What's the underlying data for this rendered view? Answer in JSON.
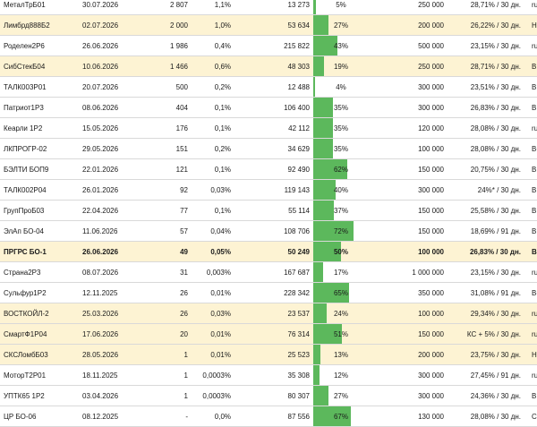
{
  "rows": [
    {
      "name": "МеталТрБ01",
      "date": "30.07.2026",
      "qty": "2 807",
      "share": "1,1%",
      "sum": "13 273",
      "pct": "5%",
      "fill": 5,
      "nominal": "250 000",
      "yield": "28,71% / 30 дн.",
      "rating": "ruB",
      "hl": false,
      "bold": false
    },
    {
      "name": "Лимбрд888Б2",
      "date": "02.07.2026",
      "qty": "2 000",
      "share": "1,0%",
      "sum": "53 634",
      "pct": "27%",
      "fill": 27,
      "nominal": "200 000",
      "yield": "26,22% / 30 дн.",
      "rating": "Нет",
      "hl": true,
      "bold": false
    },
    {
      "name": "Роделен2Р6",
      "date": "26.06.2026",
      "qty": "1 986",
      "share": "0,4%",
      "sum": "215 822",
      "pct": "43%",
      "fill": 43,
      "nominal": "500 000",
      "yield": "23,15% / 30 дн.",
      "rating": "ruBBB / Развив.",
      "hl": false,
      "bold": false
    },
    {
      "name": "СибСтекБ04",
      "date": "10.06.2026",
      "qty": "1 466",
      "share": "0,6%",
      "sum": "48 303",
      "pct": "19%",
      "fill": 19,
      "nominal": "250 000",
      "yield": "28,71% / 30 дн.",
      "rating": "BB-(RU) / Развив.",
      "hl": true,
      "bold": false
    },
    {
      "name": "ТАЛК003Р01",
      "date": "20.07.2026",
      "qty": "500",
      "share": "0,2%",
      "sum": "12 488",
      "pct": "4%",
      "fill": 4,
      "nominal": "300 000",
      "yield": "23,51% / 30 дн.",
      "rating": "BBB(RU)",
      "hl": false,
      "bold": false
    },
    {
      "name": "Патриот1Р3",
      "date": "08.06.2026",
      "qty": "404",
      "share": "0,1%",
      "sum": "106 400",
      "pct": "35%",
      "fill": 35,
      "nominal": "300 000",
      "yield": "26,83% / 30 дн.",
      "rating": "BB+.ru / Неопред.",
      "hl": false,
      "bold": false
    },
    {
      "name": "Кеарли 1Р2",
      "date": "15.05.2026",
      "qty": "176",
      "share": "0,1%",
      "sum": "42 112",
      "pct": "35%",
      "fill": 35,
      "nominal": "120 000",
      "yield": "28,08% / 30 дн.",
      "rating": "ruB+",
      "hl": false,
      "bold": false
    },
    {
      "name": "ЛКПРОГР-02",
      "date": "29.05.2026",
      "qty": "151",
      "share": "0,2%",
      "sum": "34 629",
      "pct": "35%",
      "fill": 35,
      "nominal": "100 000",
      "yield": "28,08% / 30 дн.",
      "rating": "B+.ru",
      "hl": false,
      "bold": false
    },
    {
      "name": "БЭЛТИ БОП9",
      "date": "22.01.2026",
      "qty": "121",
      "share": "0,1%",
      "sum": "92 490",
      "pct": "62%",
      "fill": 62,
      "nominal": "150 000",
      "yield": "20,75% / 30 дн.",
      "rating": "BB-(RU)",
      "hl": false,
      "bold": false
    },
    {
      "name": "ТАЛК002Р04",
      "date": "26.01.2026",
      "qty": "92",
      "share": "0,03%",
      "sum": "119 143",
      "pct": "40%",
      "fill": 40,
      "nominal": "300 000",
      "yield": "24%* / 30 дн.",
      "rating": "BBB(RU)",
      "hl": false,
      "bold": false
    },
    {
      "name": "ГрупПроБ03",
      "date": "22.04.2026",
      "qty": "77",
      "share": "0,1%",
      "sum": "55 114",
      "pct": "37%",
      "fill": 37,
      "nominal": "150 000",
      "yield": "25,58% / 30 дн.",
      "rating": "BB-.ru",
      "hl": false,
      "bold": false
    },
    {
      "name": "ЭлАп БО-04",
      "date": "11.06.2026",
      "qty": "57",
      "share": "0,04%",
      "sum": "108 706",
      "pct": "72%",
      "fill": 72,
      "nominal": "150 000",
      "yield": "18,69% / 91 дн.",
      "rating": "BB-.ru",
      "hl": false,
      "bold": false
    },
    {
      "name": "ПРГРС БО-1",
      "date": "26.06.2026",
      "qty": "49",
      "share": "0,05%",
      "sum": "50 249",
      "pct": "50%",
      "fill": 50,
      "nominal": "100 000",
      "yield": "26,83% / 30 дн.",
      "rating": "BB-.ru",
      "hl": true,
      "bold": true
    },
    {
      "name": "Страна2Р3",
      "date": "08.07.2026",
      "qty": "31",
      "share": "0,003%",
      "sum": "167 687",
      "pct": "17%",
      "fill": 17,
      "nominal": "1 000 000",
      "yield": "23,15% / 30 дн.",
      "rating": "ruBBB-",
      "hl": false,
      "bold": false
    },
    {
      "name": "Сульфур1Р2",
      "date": "12.11.2025",
      "qty": "26",
      "share": "0,01%",
      "sum": "228 342",
      "pct": "65%",
      "fill": 65,
      "nominal": "350 000",
      "yield": "31,08% / 91 дн.",
      "rating": "B(RU)",
      "hl": false,
      "bold": false
    },
    {
      "name": "ВОСТКОЙЛ-2",
      "date": "25.03.2026",
      "qty": "26",
      "share": "0,03%",
      "sum": "23 537",
      "pct": "24%",
      "fill": 24,
      "nominal": "100 000",
      "yield": "29,34% / 30 дн.",
      "rating": "ruB-",
      "hl": true,
      "bold": false
    },
    {
      "name": "СмартФ1Р04",
      "date": "17.06.2026",
      "qty": "20",
      "share": "0,01%",
      "sum": "76 314",
      "pct": "51%",
      "fill": 51,
      "nominal": "150 000",
      "yield": "КС + 5% / 30 дн.",
      "rating": "ruBBB-",
      "hl": true,
      "bold": false
    },
    {
      "name": "СКСЛомбБ03",
      "date": "28.05.2026",
      "qty": "1",
      "share": "0,01%",
      "sum": "25 523",
      "pct": "13%",
      "fill": 13,
      "nominal": "200 000",
      "yield": "23,75% / 30 дн.",
      "rating": "Нет",
      "hl": true,
      "bold": false
    },
    {
      "name": "МоторТ2Р01",
      "date": "18.11.2025",
      "qty": "1",
      "share": "0,0003%",
      "sum": "35 308",
      "pct": "12%",
      "fill": 12,
      "nominal": "300 000",
      "yield": "27,45% / 91 дн.",
      "rating": "ruB- / Нег.",
      "hl": false,
      "bold": false
    },
    {
      "name": "УПТК65 1Р2",
      "date": "03.04.2026",
      "qty": "1",
      "share": "0,0003%",
      "sum": "80 307",
      "pct": "27%",
      "fill": 27,
      "nominal": "300 000",
      "yield": "24,36% / 30 дн.",
      "rating": "BB|ru|",
      "hl": false,
      "bold": false
    },
    {
      "name": "ЦР БО-06",
      "date": "08.12.2025",
      "qty": "-",
      "share": "0,0%",
      "sum": "87 556",
      "pct": "67%",
      "fill": 67,
      "nominal": "130 000",
      "yield": "28,08% / 30 дн.",
      "rating": "C(RU) / Развив.",
      "hl": false,
      "bold": false
    }
  ],
  "colors": {
    "bar": "#5cb85c",
    "highlight": "#fdf3d3"
  }
}
